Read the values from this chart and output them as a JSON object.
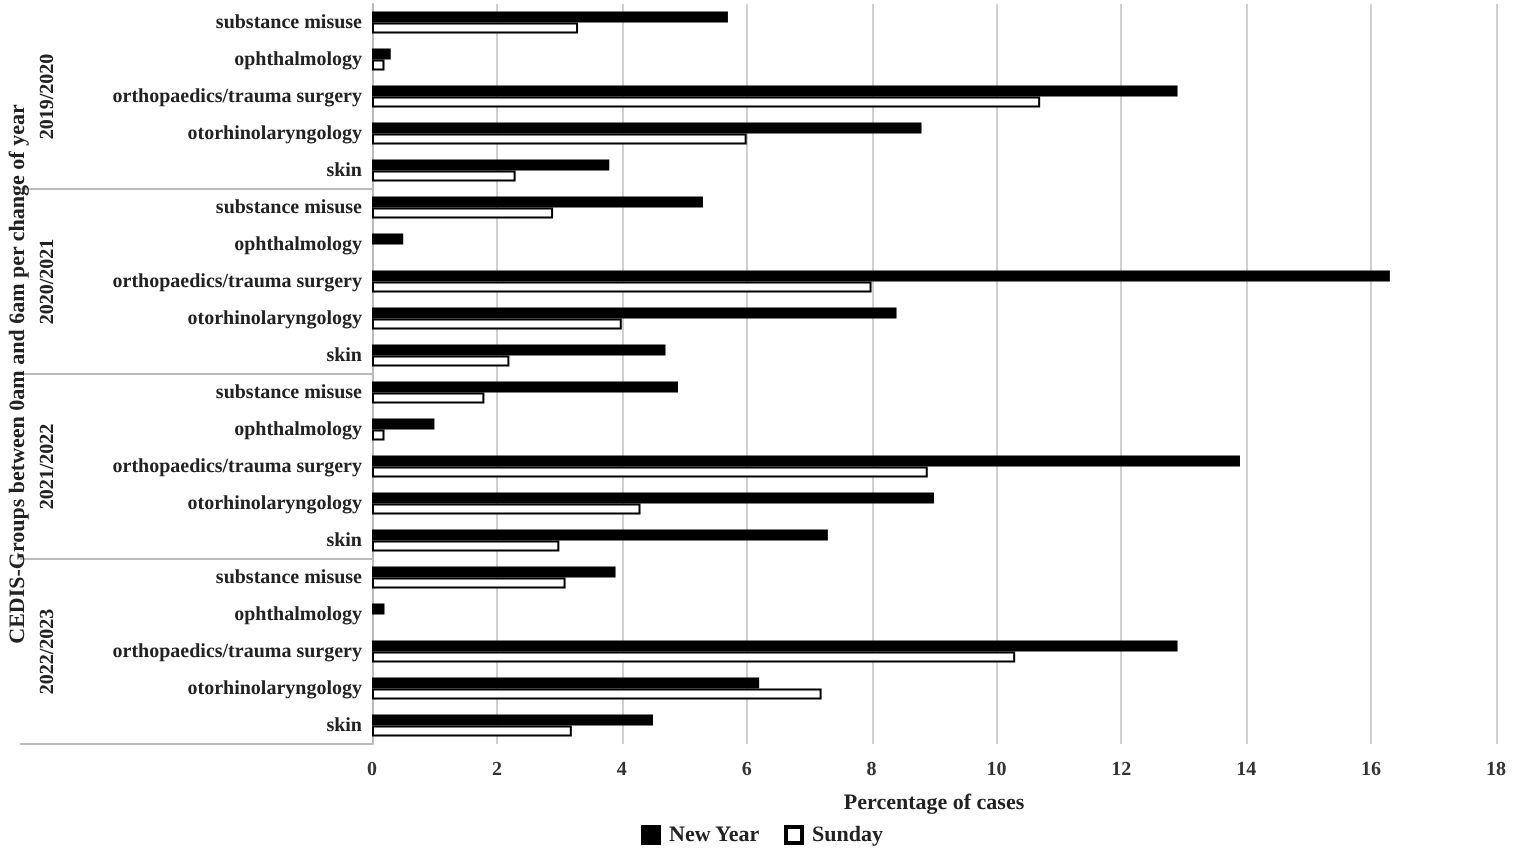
{
  "chart_data": {
    "type": "bar",
    "orientation": "horizontal",
    "ylabel": "CEDIS-Groups between 0am and 6am per change of year",
    "xlabel": "Percentage of cases",
    "annotations": [
      "2019/2020",
      "2020/2021",
      "2021/2022",
      "2022/2023"
    ],
    "categories": [
      "substance misuse",
      "ophthalmology",
      "orthopaedics/trauma surgery",
      "otorhinolaryngology",
      "skin",
      "substance misuse",
      "ophthalmology",
      "orthopaedics/trauma surgery",
      "otorhinolaryngology",
      "skin",
      "substance misuse",
      "ophthalmology",
      "orthopaedics/trauma surgery",
      "otorhinolaryngology",
      "skin",
      "substance misuse",
      "ophthalmology",
      "orthopaedics/trauma surgery",
      "otorhinolaryngology",
      "skin"
    ],
    "series": [
      {
        "name": "New Year",
        "color": "#000000",
        "values": [
          5.7,
          0.3,
          12.9,
          8.8,
          3.8,
          5.3,
          0.5,
          16.3,
          8.4,
          4.7,
          4.9,
          1.0,
          13.9,
          9.0,
          7.3,
          3.9,
          0.2,
          12.9,
          6.2,
          4.5
        ]
      },
      {
        "name": "Sunday",
        "color": "#ffffff",
        "values": [
          3.3,
          0.2,
          10.7,
          6.0,
          2.3,
          2.9,
          null,
          8.0,
          4.0,
          2.2,
          1.8,
          0.2,
          8.9,
          4.3,
          3.0,
          3.1,
          null,
          10.3,
          7.2,
          3.2
        ]
      }
    ],
    "xlim": [
      0,
      18
    ],
    "xticks": [
      0,
      2,
      4,
      6,
      8,
      10,
      12,
      14,
      16,
      18
    ],
    "grid": "x",
    "legend": "bottom"
  }
}
